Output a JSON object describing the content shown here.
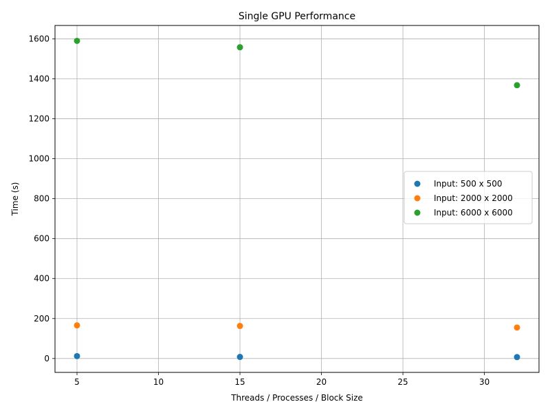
{
  "chart_data": {
    "type": "scatter",
    "title": "Single GPU Performance",
    "xlabel": "Threads / Processes / Block Size",
    "ylabel": "Time (s)",
    "xlim": [
      3.65,
      33.35
    ],
    "ylim": [
      -69.5,
      1667
    ],
    "xticks": [
      5,
      10,
      15,
      20,
      25,
      30
    ],
    "yticks": [
      0,
      200,
      400,
      600,
      800,
      1000,
      1200,
      1400,
      1600
    ],
    "grid": true,
    "legend_position": "center-right",
    "series": [
      {
        "name": "Input: 500 x 500",
        "color": "#1f77b4",
        "x": [
          5,
          15,
          32
        ],
        "y": [
          12,
          8,
          7
        ]
      },
      {
        "name": "Input: 2000 x 2000",
        "color": "#ff7f0e",
        "x": [
          5,
          15,
          32
        ],
        "y": [
          166,
          163,
          155
        ]
      },
      {
        "name": "Input: 6000 x 6000",
        "color": "#2ca02c",
        "x": [
          5,
          15,
          32
        ],
        "y": [
          1590,
          1558,
          1368
        ]
      }
    ]
  }
}
